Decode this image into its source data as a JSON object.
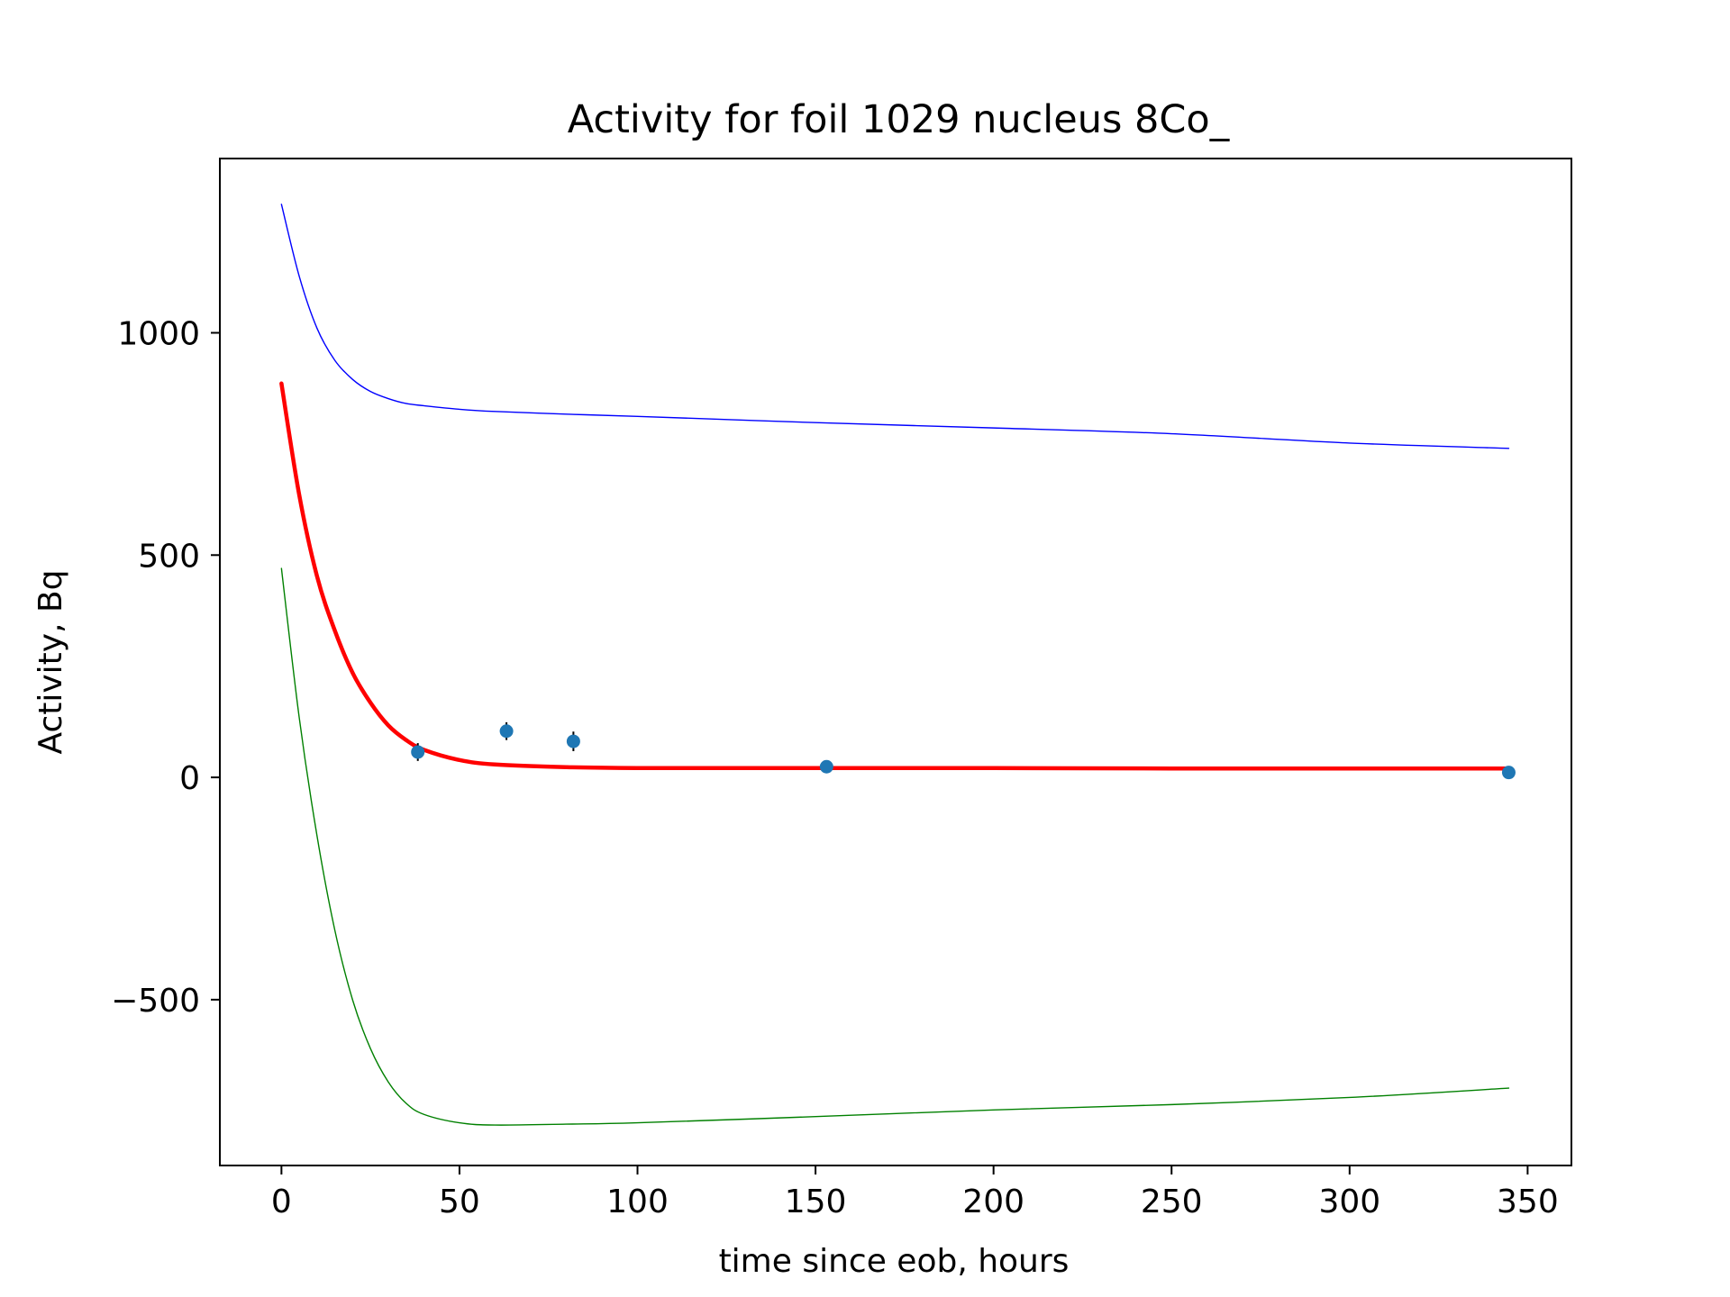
{
  "chart_data": {
    "type": "scatter",
    "title": "Activity for foil 1029 nucleus 8Co_",
    "xlabel": "time since eob, hours",
    "ylabel": "Activity, Bq",
    "xlim": [
      -17.3,
      362.3
    ],
    "ylim": [
      -873,
      1392
    ],
    "x_ticks": [
      0,
      50,
      100,
      150,
      200,
      250,
      300,
      350
    ],
    "x_tick_labels": [
      "0",
      "50",
      "100",
      "150",
      "200",
      "250",
      "300",
      "350"
    ],
    "y_ticks": [
      -500,
      0,
      500,
      1000
    ],
    "y_tick_labels": [
      "−500",
      "0",
      "500",
      "1000"
    ],
    "grid": false,
    "series": [
      {
        "kind": "points",
        "color": "#1f77b4",
        "error_color": "#000000",
        "x": [
          38.3,
          63.2,
          82.0,
          153.1,
          344.7
        ],
        "y": [
          57,
          104,
          81,
          24,
          11
        ],
        "yerr": [
          20,
          20,
          22,
          8,
          5
        ]
      },
      {
        "kind": "curve",
        "color": "#ff0000",
        "x": [
          0,
          5,
          10,
          15,
          20,
          25,
          30,
          35,
          40,
          50,
          60,
          80,
          100,
          150,
          200,
          250,
          300,
          344.7
        ],
        "y": [
          886,
          635,
          452,
          330,
          235,
          168,
          117,
          84,
          62,
          39,
          29,
          23,
          21,
          21,
          21,
          20,
          20,
          20
        ]
      },
      {
        "kind": "curve",
        "color": "#0000ff",
        "x": [
          0,
          5,
          10,
          15,
          20,
          25,
          30,
          35,
          40,
          50,
          60,
          80,
          100,
          150,
          200,
          250,
          300,
          344.7
        ],
        "y": [
          1289,
          1127,
          1010,
          938,
          895,
          868,
          852,
          841,
          836,
          828,
          823,
          817,
          812,
          798,
          786,
          773,
          752,
          740
        ]
      },
      {
        "kind": "curve",
        "color": "#008000",
        "x": [
          0,
          5,
          10,
          15,
          20,
          25,
          30,
          35,
          40,
          50,
          60,
          80,
          100,
          150,
          200,
          250,
          300,
          344.7
        ],
        "y": [
          470,
          134,
          -132,
          -344,
          -501,
          -610,
          -685,
          -733,
          -758,
          -777,
          -782,
          -780,
          -777,
          -763,
          -748,
          -736,
          -720,
          -699
        ]
      }
    ]
  }
}
